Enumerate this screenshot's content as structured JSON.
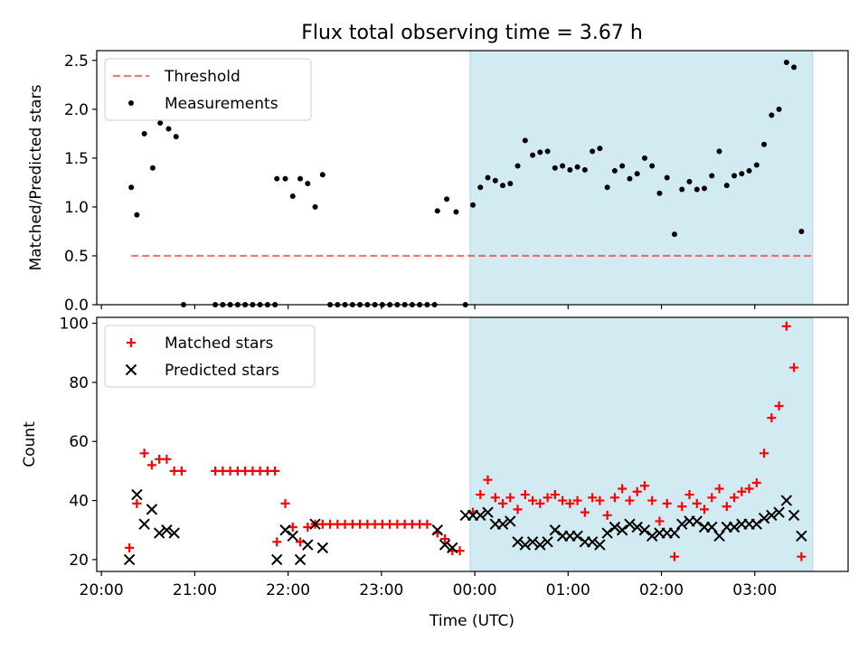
{
  "title": "Flux total observing time = 3.67 h",
  "colors": {
    "shade": "#add8e6",
    "threshold": "#ff0000",
    "matched": "#ff0000",
    "predicted": "#000000",
    "measure": "#000000"
  },
  "x_axis": {
    "label": "Time (UTC)",
    "ticks": [
      "20:00",
      "21:00",
      "22:00",
      "23:00",
      "00:00",
      "01:00",
      "02:00",
      "03:00"
    ],
    "tick_values": [
      0,
      1,
      2,
      3,
      4,
      5,
      6,
      7
    ],
    "range": [
      -0.05,
      8.0
    ],
    "unit_note": "hours since 20:00 UTC"
  },
  "shaded_span": [
    3.95,
    7.62
  ],
  "chart_data": [
    {
      "type": "scatter",
      "ylabel": "Matched/Predicted stars",
      "ylim": [
        0,
        2.6
      ],
      "yticks": [
        "0.0",
        "0.5",
        "1.0",
        "1.5",
        "2.0",
        "2.5"
      ],
      "ytick_values": [
        0,
        0.5,
        1.0,
        1.5,
        2.0,
        2.5
      ],
      "legend": {
        "placement": "upper-left",
        "entries": [
          "Threshold",
          "Measurements"
        ]
      },
      "threshold": {
        "name": "Threshold",
        "y": 0.5,
        "x_range": [
          0.32,
          7.62
        ]
      },
      "series": [
        {
          "name": "Measurements",
          "points": [
            [
              0.32,
              1.2
            ],
            [
              0.38,
              0.92
            ],
            [
              0.46,
              1.75
            ],
            [
              0.55,
              1.4
            ],
            [
              0.63,
              1.86
            ],
            [
              0.72,
              1.8
            ],
            [
              0.8,
              1.72
            ],
            [
              0.88,
              0
            ],
            [
              1.22,
              0
            ],
            [
              1.3,
              0
            ],
            [
              1.38,
              0
            ],
            [
              1.46,
              0
            ],
            [
              1.54,
              0
            ],
            [
              1.62,
              0
            ],
            [
              1.7,
              0
            ],
            [
              1.78,
              0
            ],
            [
              1.86,
              0
            ],
            [
              1.88,
              1.29
            ],
            [
              1.97,
              1.29
            ],
            [
              2.05,
              1.11
            ],
            [
              2.13,
              1.29
            ],
            [
              2.21,
              1.24
            ],
            [
              2.29,
              1.0
            ],
            [
              2.37,
              1.33
            ],
            [
              2.45,
              0
            ],
            [
              2.53,
              0
            ],
            [
              2.61,
              0
            ],
            [
              2.69,
              0
            ],
            [
              2.77,
              0
            ],
            [
              2.85,
              0
            ],
            [
              2.93,
              0
            ],
            [
              3.01,
              0
            ],
            [
              3.09,
              0
            ],
            [
              3.17,
              0
            ],
            [
              3.25,
              0
            ],
            [
              3.33,
              0
            ],
            [
              3.41,
              0
            ],
            [
              3.49,
              0
            ],
            [
              3.57,
              0
            ],
            [
              3.6,
              0.96
            ],
            [
              3.7,
              1.08
            ],
            [
              3.8,
              0.95
            ],
            [
              3.9,
              0
            ],
            [
              3.98,
              1.02
            ],
            [
              4.06,
              1.2
            ],
            [
              4.14,
              1.3
            ],
            [
              4.22,
              1.27
            ],
            [
              4.3,
              1.22
            ],
            [
              4.38,
              1.24
            ],
            [
              4.46,
              1.42
            ],
            [
              4.54,
              1.68
            ],
            [
              4.62,
              1.53
            ],
            [
              4.7,
              1.56
            ],
            [
              4.78,
              1.57
            ],
            [
              4.86,
              1.4
            ],
            [
              4.94,
              1.42
            ],
            [
              5.02,
              1.38
            ],
            [
              5.1,
              1.41
            ],
            [
              5.18,
              1.38
            ],
            [
              5.26,
              1.57
            ],
            [
              5.34,
              1.6
            ],
            [
              5.42,
              1.2
            ],
            [
              5.5,
              1.37
            ],
            [
              5.58,
              1.42
            ],
            [
              5.66,
              1.29
            ],
            [
              5.74,
              1.34
            ],
            [
              5.82,
              1.5
            ],
            [
              5.9,
              1.42
            ],
            [
              5.98,
              1.14
            ],
            [
              6.06,
              1.3
            ],
            [
              6.14,
              0.72
            ],
            [
              6.22,
              1.18
            ],
            [
              6.3,
              1.26
            ],
            [
              6.38,
              1.18
            ],
            [
              6.46,
              1.19
            ],
            [
              6.54,
              1.32
            ],
            [
              6.62,
              1.57
            ],
            [
              6.7,
              1.22
            ],
            [
              6.78,
              1.32
            ],
            [
              6.86,
              1.34
            ],
            [
              6.94,
              1.37
            ],
            [
              7.02,
              1.43
            ],
            [
              7.1,
              1.64
            ],
            [
              7.18,
              1.94
            ],
            [
              7.26,
              2.0
            ],
            [
              7.34,
              2.48
            ],
            [
              7.42,
              2.43
            ],
            [
              7.5,
              0.75
            ]
          ]
        }
      ]
    },
    {
      "type": "scatter",
      "ylabel": "Count",
      "ylim": [
        16,
        102
      ],
      "yticks": [
        "20",
        "40",
        "60",
        "80",
        "100"
      ],
      "ytick_values": [
        20,
        40,
        60,
        80,
        100
      ],
      "legend": {
        "placement": "upper-left",
        "entries": [
          "Matched stars",
          "Predicted stars"
        ]
      },
      "series": [
        {
          "name": "Matched stars",
          "marker": "plus",
          "points": [
            [
              0.3,
              24
            ],
            [
              0.38,
              39
            ],
            [
              0.46,
              56
            ],
            [
              0.54,
              52
            ],
            [
              0.62,
              54
            ],
            [
              0.7,
              54
            ],
            [
              0.78,
              50
            ],
            [
              0.86,
              50
            ],
            [
              1.22,
              50
            ],
            [
              1.3,
              50
            ],
            [
              1.38,
              50
            ],
            [
              1.46,
              50
            ],
            [
              1.54,
              50
            ],
            [
              1.62,
              50
            ],
            [
              1.7,
              50
            ],
            [
              1.78,
              50
            ],
            [
              1.86,
              50
            ],
            [
              1.88,
              26
            ],
            [
              1.97,
              39
            ],
            [
              2.05,
              31
            ],
            [
              2.13,
              26
            ],
            [
              2.21,
              31
            ],
            [
              2.29,
              32
            ],
            [
              2.37,
              32
            ],
            [
              2.45,
              32
            ],
            [
              2.53,
              32
            ],
            [
              2.61,
              32
            ],
            [
              2.69,
              32
            ],
            [
              2.77,
              32
            ],
            [
              2.85,
              32
            ],
            [
              2.93,
              32
            ],
            [
              3.01,
              32
            ],
            [
              3.09,
              32
            ],
            [
              3.17,
              32
            ],
            [
              3.25,
              32
            ],
            [
              3.33,
              32
            ],
            [
              3.41,
              32
            ],
            [
              3.49,
              32
            ],
            [
              3.6,
              29
            ],
            [
              3.68,
              27
            ],
            [
              3.76,
              23
            ],
            [
              3.84,
              23
            ],
            [
              3.98,
              36
            ],
            [
              4.06,
              42
            ],
            [
              4.14,
              47
            ],
            [
              4.22,
              41
            ],
            [
              4.3,
              39
            ],
            [
              4.38,
              41
            ],
            [
              4.46,
              37
            ],
            [
              4.54,
              42
            ],
            [
              4.62,
              40
            ],
            [
              4.7,
              39
            ],
            [
              4.78,
              41
            ],
            [
              4.86,
              42
            ],
            [
              4.94,
              40
            ],
            [
              5.02,
              39
            ],
            [
              5.1,
              40
            ],
            [
              5.18,
              36
            ],
            [
              5.26,
              41
            ],
            [
              5.34,
              40
            ],
            [
              5.42,
              35
            ],
            [
              5.5,
              41
            ],
            [
              5.58,
              44
            ],
            [
              5.66,
              40
            ],
            [
              5.74,
              43
            ],
            [
              5.82,
              45
            ],
            [
              5.9,
              40
            ],
            [
              5.98,
              33
            ],
            [
              6.06,
              39
            ],
            [
              6.14,
              21
            ],
            [
              6.22,
              38
            ],
            [
              6.3,
              42
            ],
            [
              6.38,
              39
            ],
            [
              6.46,
              37
            ],
            [
              6.54,
              41
            ],
            [
              6.62,
              44
            ],
            [
              6.7,
              38
            ],
            [
              6.78,
              41
            ],
            [
              6.86,
              43
            ],
            [
              6.94,
              44
            ],
            [
              7.02,
              46
            ],
            [
              7.1,
              56
            ],
            [
              7.18,
              68
            ],
            [
              7.26,
              72
            ],
            [
              7.34,
              99
            ],
            [
              7.42,
              85
            ],
            [
              7.5,
              21
            ]
          ]
        },
        {
          "name": "Predicted stars",
          "marker": "x",
          "points": [
            [
              0.3,
              20
            ],
            [
              0.38,
              42
            ],
            [
              0.46,
              32
            ],
            [
              0.54,
              37
            ],
            [
              0.62,
              29
            ],
            [
              0.7,
              30
            ],
            [
              0.78,
              29
            ],
            [
              1.88,
              20
            ],
            [
              1.97,
              30
            ],
            [
              2.05,
              28
            ],
            [
              2.13,
              20
            ],
            [
              2.21,
              25
            ],
            [
              2.29,
              32
            ],
            [
              2.37,
              24
            ],
            [
              3.6,
              30
            ],
            [
              3.68,
              25
            ],
            [
              3.76,
              24
            ],
            [
              3.9,
              35
            ],
            [
              3.98,
              35
            ],
            [
              4.06,
              35
            ],
            [
              4.14,
              36
            ],
            [
              4.22,
              32
            ],
            [
              4.3,
              32
            ],
            [
              4.38,
              33
            ],
            [
              4.46,
              26
            ],
            [
              4.54,
              25
            ],
            [
              4.62,
              26
            ],
            [
              4.7,
              25
            ],
            [
              4.78,
              26
            ],
            [
              4.86,
              30
            ],
            [
              4.94,
              28
            ],
            [
              5.02,
              28
            ],
            [
              5.1,
              28
            ],
            [
              5.18,
              26
            ],
            [
              5.26,
              26
            ],
            [
              5.34,
              25
            ],
            [
              5.42,
              29
            ],
            [
              5.5,
              31
            ],
            [
              5.58,
              30
            ],
            [
              5.66,
              32
            ],
            [
              5.74,
              31
            ],
            [
              5.82,
              30
            ],
            [
              5.9,
              28
            ],
            [
              5.98,
              29
            ],
            [
              6.06,
              29
            ],
            [
              6.14,
              29
            ],
            [
              6.22,
              32
            ],
            [
              6.3,
              33
            ],
            [
              6.38,
              33
            ],
            [
              6.46,
              31
            ],
            [
              6.54,
              31
            ],
            [
              6.62,
              28
            ],
            [
              6.7,
              31
            ],
            [
              6.78,
              31
            ],
            [
              6.86,
              32
            ],
            [
              6.94,
              32
            ],
            [
              7.02,
              32
            ],
            [
              7.1,
              34
            ],
            [
              7.18,
              35
            ],
            [
              7.26,
              36
            ],
            [
              7.34,
              40
            ],
            [
              7.42,
              35
            ],
            [
              7.5,
              28
            ]
          ]
        }
      ]
    }
  ]
}
